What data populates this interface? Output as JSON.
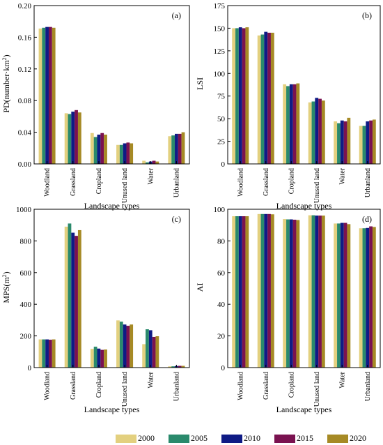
{
  "chart_data": [
    {
      "type": "bar",
      "panel_label": "(a)",
      "ylabel": "PD(number·km²)",
      "ylabel_base": "PD(number·km",
      "ylabel_sup": "2",
      "ylabel_tail": ")",
      "xlabel": "Landscape types",
      "categories": [
        "Woodland",
        "Grassland",
        "Cropland",
        "Unused land",
        "Water",
        "Urbanland"
      ],
      "ylim": [
        0,
        0.2
      ],
      "yticks": [
        "0.00",
        "0.04",
        "0.08",
        "0.12",
        "0.16",
        "0.20"
      ],
      "ytick_values": [
        0,
        0.04,
        0.08,
        0.12,
        0.16,
        0.2
      ],
      "series": [
        {
          "name": "2000",
          "values": [
            0.171,
            0.064,
            0.039,
            0.024,
            0.004,
            0.035
          ]
        },
        {
          "name": "2005",
          "values": [
            0.172,
            0.063,
            0.034,
            0.024,
            0.002,
            0.036
          ]
        },
        {
          "name": "2010",
          "values": [
            0.173,
            0.066,
            0.037,
            0.026,
            0.003,
            0.038
          ]
        },
        {
          "name": "2015",
          "values": [
            0.173,
            0.068,
            0.039,
            0.027,
            0.004,
            0.038
          ]
        },
        {
          "name": "2020",
          "values": [
            0.172,
            0.065,
            0.037,
            0.026,
            0.003,
            0.04
          ]
        }
      ]
    },
    {
      "type": "bar",
      "panel_label": "(b)",
      "ylabel": "LSI",
      "xlabel": "Landscape types",
      "categories": [
        "Woodland",
        "Grassland",
        "Cropland",
        "Unused land",
        "Water",
        "Urbanland"
      ],
      "ylim": [
        0,
        175
      ],
      "yticks": [
        "0",
        "25",
        "50",
        "75",
        "100",
        "125",
        "150",
        "175"
      ],
      "ytick_values": [
        0,
        25,
        50,
        75,
        100,
        125,
        150,
        175
      ],
      "series": [
        {
          "name": "2000",
          "values": [
            150,
            142,
            88,
            68,
            47,
            42
          ]
        },
        {
          "name": "2005",
          "values": [
            150,
            143,
            86,
            69,
            45,
            42
          ]
        },
        {
          "name": "2010",
          "values": [
            151,
            146,
            88,
            73,
            48,
            47
          ]
        },
        {
          "name": "2015",
          "values": [
            150,
            145,
            88,
            72,
            47,
            48
          ]
        },
        {
          "name": "2020",
          "values": [
            151,
            145,
            89,
            70,
            51,
            49
          ]
        }
      ]
    },
    {
      "type": "bar",
      "panel_label": "(c)",
      "ylabel": "MPS(m²)",
      "ylabel_base": "MPS(m",
      "ylabel_sup": "2",
      "ylabel_tail": ")",
      "xlabel": "Landscape types",
      "categories": [
        "Woodland",
        "Grassland",
        "Cropland",
        "Unused land",
        "Water",
        "Urbanland"
      ],
      "ylim": [
        0,
        1000
      ],
      "yticks": [
        "0",
        "200",
        "400",
        "600",
        "800",
        "1000"
      ],
      "ytick_values": [
        0,
        200,
        400,
        600,
        800,
        1000
      ],
      "series": [
        {
          "name": "2000",
          "values": [
            178,
            890,
            118,
            298,
            148,
            8
          ]
        },
        {
          "name": "2005",
          "values": [
            178,
            910,
            132,
            290,
            242,
            8
          ]
        },
        {
          "name": "2010",
          "values": [
            178,
            852,
            120,
            272,
            236,
            10
          ]
        },
        {
          "name": "2015",
          "values": [
            176,
            832,
            112,
            264,
            194,
            11
          ]
        },
        {
          "name": "2020",
          "values": [
            178,
            868,
            114,
            272,
            198,
            11
          ]
        }
      ]
    },
    {
      "type": "bar",
      "panel_label": "(d)",
      "ylabel": "AI",
      "xlabel": "Landscape types",
      "categories": [
        "Woodland",
        "Grassland",
        "Cropland",
        "Unused land",
        "Water",
        "Urbanland"
      ],
      "ylim": [
        0,
        100
      ],
      "yticks": [
        "0",
        "20",
        "40",
        "60",
        "80",
        "100"
      ],
      "ytick_values": [
        0,
        20,
        40,
        60,
        80,
        100
      ],
      "series": [
        {
          "name": "2000",
          "values": [
            95.6,
            97.0,
            93.8,
            96.2,
            91.0,
            88.0
          ]
        },
        {
          "name": "2005",
          "values": [
            95.6,
            97.0,
            93.6,
            96.2,
            91.0,
            88.0
          ]
        },
        {
          "name": "2010",
          "values": [
            95.6,
            97.0,
            93.6,
            96.0,
            91.4,
            88.2
          ]
        },
        {
          "name": "2015",
          "values": [
            95.6,
            97.0,
            93.4,
            96.0,
            91.4,
            89.2
          ]
        },
        {
          "name": "2020",
          "values": [
            95.6,
            96.8,
            93.2,
            96.0,
            90.6,
            88.8
          ]
        }
      ]
    }
  ],
  "legend": {
    "items": [
      {
        "label": "2000",
        "color": "#e3d07f"
      },
      {
        "label": "2005",
        "color": "#2a8a6c"
      },
      {
        "label": "2010",
        "color": "#0f1b85"
      },
      {
        "label": "2015",
        "color": "#7a1250"
      },
      {
        "label": "2020",
        "color": "#a68a25"
      }
    ]
  }
}
